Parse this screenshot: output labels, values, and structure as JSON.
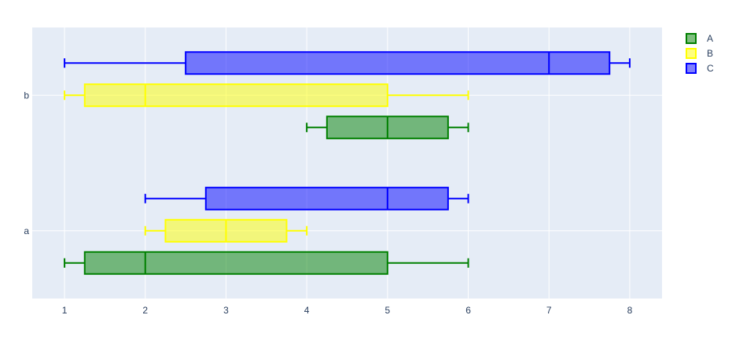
{
  "chart_data": {
    "type": "box",
    "orientation": "horizontal",
    "title": "",
    "xlabel": "",
    "ylabel": "",
    "xlim": [
      0.6,
      8.4
    ],
    "x_ticks": [
      1,
      2,
      3,
      4,
      5,
      6,
      7,
      8
    ],
    "categories": [
      "a",
      "b"
    ],
    "grid": true,
    "background_color": "#E5ECF6",
    "legend_position": "top-right",
    "series": [
      {
        "name": "A",
        "color": "#008000",
        "boxes": [
          {
            "category": "a",
            "min": 1,
            "q1": 1.25,
            "median": 2,
            "q3": 5,
            "max": 6
          },
          {
            "category": "b",
            "min": 4,
            "q1": 4.25,
            "median": 5,
            "q3": 5.75,
            "max": 6
          }
        ]
      },
      {
        "name": "B",
        "color": "#FFFF00",
        "boxes": [
          {
            "category": "a",
            "min": 2,
            "q1": 2.25,
            "median": 3,
            "q3": 3.75,
            "max": 4
          },
          {
            "category": "b",
            "min": 1,
            "q1": 1.25,
            "median": 2,
            "q3": 5,
            "max": 6
          }
        ]
      },
      {
        "name": "C",
        "color": "#0000FF",
        "boxes": [
          {
            "category": "a",
            "min": 2,
            "q1": 2.75,
            "median": 5,
            "q3": 5.75,
            "max": 6
          },
          {
            "category": "b",
            "min": 1,
            "q1": 2.5,
            "median": 7,
            "q3": 7.75,
            "max": 8
          }
        ]
      }
    ]
  }
}
